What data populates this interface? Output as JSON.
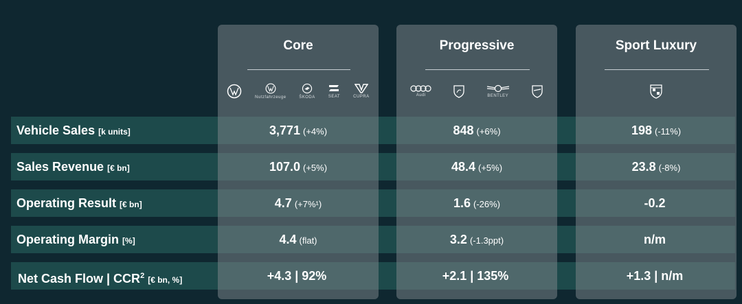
{
  "columns": [
    {
      "title": "Core",
      "logos": [
        {
          "icon": "vw-logo",
          "text": ""
        },
        {
          "icon": "vw-commercial-logo",
          "text": "Nutzfahrzeuge"
        },
        {
          "icon": "skoda-logo",
          "text": "ŠKODA"
        },
        {
          "icon": "seat-logo",
          "text": "SEAT"
        },
        {
          "icon": "cupra-logo",
          "text": "CUPRA"
        }
      ]
    },
    {
      "title": "Progressive",
      "logos": [
        {
          "icon": "audi-logo",
          "text": "Audi"
        },
        {
          "icon": "lamborghini-logo",
          "text": ""
        },
        {
          "icon": "bentley-logo",
          "text": "BENTLEY"
        },
        {
          "icon": "ducati-logo",
          "text": ""
        }
      ]
    },
    {
      "title": "Sport Luxury",
      "logos": [
        {
          "icon": "porsche-logo",
          "text": ""
        }
      ]
    }
  ],
  "rows": [
    {
      "label": "Vehicle Sales",
      "unit": "[k units]",
      "sup": "",
      "cells": [
        {
          "value": "3,771",
          "change": "(+4%)"
        },
        {
          "value": "848",
          "change": "(+6%)"
        },
        {
          "value": "198",
          "change": "(-11%)"
        }
      ]
    },
    {
      "label": "Sales Revenue",
      "unit": "[€ bn]",
      "sup": "",
      "cells": [
        {
          "value": "107.0",
          "change": "(+5%)"
        },
        {
          "value": "48.4",
          "change": "(+5%)"
        },
        {
          "value": "23.8",
          "change": "(-8%)"
        }
      ]
    },
    {
      "label": "Operating Result",
      "unit": "[€ bn]",
      "sup": "",
      "cells": [
        {
          "value": "4.7",
          "change": "(+7%¹)"
        },
        {
          "value": "1.6",
          "change": "(-26%)"
        },
        {
          "value": "-0.2",
          "change": ""
        }
      ]
    },
    {
      "label": "Operating Margin",
      "unit": "[%]",
      "sup": "",
      "cells": [
        {
          "value": "4.4",
          "change": "(flat)"
        },
        {
          "value": "3.2",
          "change": "(-1.3ppt)"
        },
        {
          "value": "n/m",
          "change": ""
        }
      ]
    },
    {
      "label": "Net Cash Flow | CCR",
      "unit": "[€ bn, %]",
      "sup": "2",
      "cells": [
        {
          "value": "+4.3 | 92%",
          "change": ""
        },
        {
          "value": "+2.1 | 135%",
          "change": ""
        },
        {
          "value": "+1.3 | n/m",
          "change": ""
        }
      ]
    }
  ],
  "colors": {
    "background": "#0f2730",
    "row_band": "#1d4a4b",
    "column_panel": "#6b767b"
  }
}
